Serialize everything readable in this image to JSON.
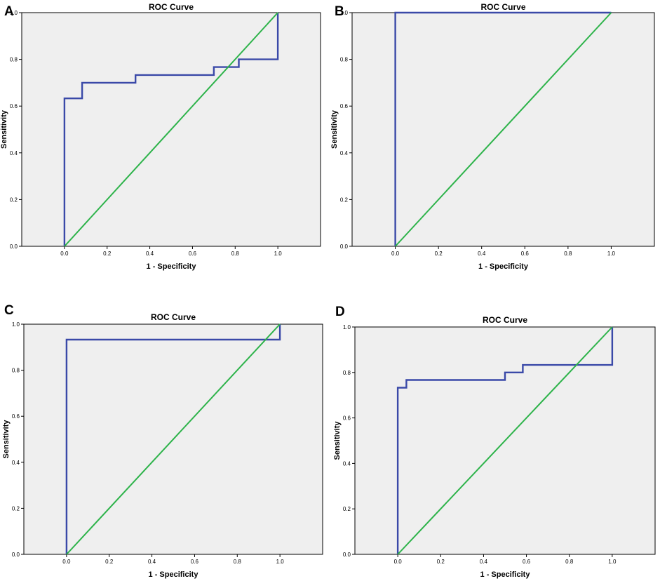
{
  "chart_data": [
    {
      "panel": "A",
      "type": "line",
      "title": "ROC Curve",
      "xlabel": "1 - Specificity",
      "ylabel": "Sensitivity",
      "xlim": [
        -0.2,
        1.2
      ],
      "ylim": [
        0.0,
        1.0
      ],
      "xticks": [
        "0.0",
        "0.2",
        "0.4",
        "0.6",
        "0.8",
        "1.0"
      ],
      "yticks": [
        "0.0",
        "0.2",
        "0.4",
        "0.6",
        "0.8",
        "1.0"
      ],
      "colors": {
        "roc": "#3a49a8",
        "reference": "#2db34a",
        "plot_bg": "#efefef"
      },
      "series": [
        {
          "name": "roc",
          "x": [
            0,
            0,
            0.083,
            0.083,
            0.333,
            0.333,
            0.7,
            0.7,
            0.817,
            0.817,
            1.0,
            1.0
          ],
          "y": [
            0,
            0.633,
            0.633,
            0.7,
            0.7,
            0.733,
            0.733,
            0.767,
            0.767,
            0.8,
            0.8,
            1.0
          ]
        },
        {
          "name": "reference",
          "x": [
            0,
            1
          ],
          "y": [
            0,
            1
          ]
        }
      ]
    },
    {
      "panel": "B",
      "type": "line",
      "title": "ROC Curve",
      "xlabel": "1 - Specificity",
      "ylabel": "Sensitivity",
      "xlim": [
        -0.2,
        1.2
      ],
      "ylim": [
        0.0,
        1.0
      ],
      "xticks": [
        "0.0",
        "0.2",
        "0.4",
        "0.6",
        "0.8",
        "1.0"
      ],
      "yticks": [
        "0.0",
        "0.2",
        "0.4",
        "0.6",
        "0.8",
        "1.0"
      ],
      "colors": {
        "roc": "#3a49a8",
        "reference": "#2db34a",
        "plot_bg": "#efefef"
      },
      "series": [
        {
          "name": "roc",
          "x": [
            0,
            0,
            1.0
          ],
          "y": [
            0,
            1.0,
            1.0
          ]
        },
        {
          "name": "reference",
          "x": [
            0,
            1
          ],
          "y": [
            0,
            1
          ]
        }
      ]
    },
    {
      "panel": "C",
      "type": "line",
      "title": "ROC Curve",
      "xlabel": "1 - Specificity",
      "ylabel": "Sensitivity",
      "xlim": [
        -0.2,
        1.2
      ],
      "ylim": [
        0.0,
        1.0
      ],
      "xticks": [
        "0.0",
        "0.2",
        "0.4",
        "0.6",
        "0.8",
        "1.0"
      ],
      "yticks": [
        "0.0",
        "0.2",
        "0.4",
        "0.6",
        "0.8",
        "1.0"
      ],
      "colors": {
        "roc": "#3a49a8",
        "reference": "#2db34a",
        "plot_bg": "#efefef"
      },
      "series": [
        {
          "name": "roc",
          "x": [
            0,
            0,
            0.975,
            0.975,
            1.0,
            1.0
          ],
          "y": [
            0,
            0.933,
            0.933,
            0.933,
            0.933,
            1.0
          ]
        },
        {
          "name": "reference",
          "x": [
            0,
            1
          ],
          "y": [
            0,
            1
          ]
        }
      ]
    },
    {
      "panel": "D",
      "type": "line",
      "title": "ROC Curve",
      "xlabel": "1 - Specificity",
      "ylabel": "Sensitivity",
      "xlim": [
        -0.2,
        1.2
      ],
      "ylim": [
        0.0,
        1.0
      ],
      "xticks": [
        "0.0",
        "0.2",
        "0.4",
        "0.6",
        "0.8",
        "1.0"
      ],
      "yticks": [
        "0.0",
        "0.2",
        "0.4",
        "0.6",
        "0.8",
        "1.0"
      ],
      "colors": {
        "roc": "#3a49a8",
        "reference": "#2db34a",
        "plot_bg": "#efefef"
      },
      "series": [
        {
          "name": "roc",
          "x": [
            0,
            0,
            0.04,
            0.04,
            0.5,
            0.5,
            0.583,
            0.583,
            1.0,
            1.0
          ],
          "y": [
            0,
            0.733,
            0.733,
            0.767,
            0.767,
            0.8,
            0.8,
            0.833,
            0.833,
            1.0
          ]
        },
        {
          "name": "reference",
          "x": [
            0,
            1
          ],
          "y": [
            0,
            1
          ]
        }
      ]
    }
  ]
}
